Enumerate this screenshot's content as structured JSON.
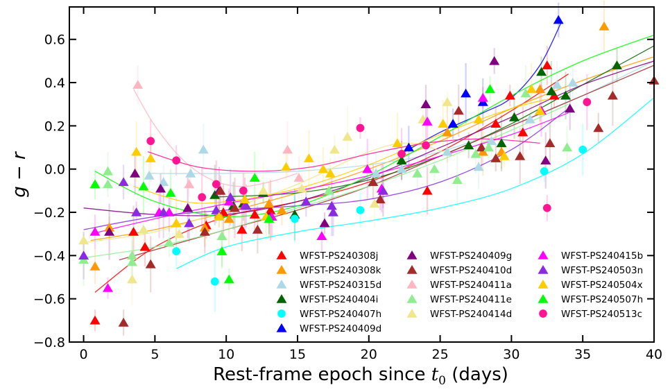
{
  "chart_data": {
    "type": "scatter",
    "xlabel_prefix": "Rest-frame epoch since ",
    "xlabel_var": "t",
    "xlabel_sub": "0",
    "xlabel_suffix": " (days)",
    "ylabel_var1": "g",
    "ylabel_op": " − ",
    "ylabel_var2": "r",
    "xlim": [
      -1,
      40
    ],
    "ylim": [
      -0.8,
      0.75
    ],
    "xticks": [
      0,
      5,
      10,
      15,
      20,
      25,
      30,
      35,
      40
    ],
    "yticks": [
      -0.8,
      -0.6,
      -0.4,
      -0.2,
      0.0,
      0.2,
      0.4,
      0.6
    ],
    "xtick_labels": [
      "0",
      "5",
      "10",
      "15",
      "20",
      "25",
      "30",
      "35",
      "40"
    ],
    "ytick_labels": [
      "−0.8",
      "−0.6",
      "−0.4",
      "−0.2",
      "0.0",
      "0.2",
      "0.4",
      "0.6"
    ],
    "legend_position": "lower-right",
    "series": [
      {
        "name": "WFST-PS240308j",
        "color": "#ff0000",
        "marker": "triangle",
        "x": [
          0.8,
          3.5,
          4.3,
          8.6,
          9.8,
          11.1,
          12.0,
          13.1,
          24.1,
          28.9,
          29.9,
          30.8,
          32.5,
          33.0
        ],
        "y": [
          -0.7,
          -0.29,
          -0.36,
          -0.26,
          -0.2,
          -0.28,
          -0.21,
          -0.19,
          -0.1,
          0.21,
          0.34,
          0.17,
          0.48,
          0.34
        ],
        "fit": [
          [
            0.8,
            -0.57
          ],
          [
            5,
            -0.36
          ],
          [
            10,
            -0.22
          ],
          [
            15,
            -0.15
          ],
          [
            20,
            -0.06
          ],
          [
            25,
            0.08
          ],
          [
            30,
            0.27
          ],
          [
            34,
            0.44
          ]
        ]
      },
      {
        "name": "WFST-PS240308k",
        "color": "#ff9900",
        "marker": "triangle",
        "x": [
          0.8,
          1.8,
          6.5,
          8.5,
          9.5,
          10.2,
          13.0,
          13.9,
          25.5,
          28.0,
          29.3,
          32.0,
          36.5
        ],
        "y": [
          -0.45,
          -0.27,
          -0.25,
          -0.27,
          -0.21,
          -0.23,
          -0.16,
          -0.19,
          0.17,
          0.08,
          0.08,
          0.37,
          0.66
        ],
        "fit": [
          [
            0.5,
            -0.33
          ],
          [
            5,
            -0.28
          ],
          [
            10,
            -0.2
          ],
          [
            15,
            -0.11
          ],
          [
            20,
            0.0
          ],
          [
            25,
            0.13
          ],
          [
            30,
            0.28
          ],
          [
            35,
            0.41
          ],
          [
            40,
            0.52
          ]
        ]
      },
      {
        "name": "WFST-PS240315d",
        "color": "#add8e6",
        "marker": "triangle",
        "x": [
          4.6,
          5.6,
          7.5,
          8.4,
          20.5,
          22.3,
          25.5,
          27.7,
          28.6,
          31.3,
          33.2,
          34.3
        ],
        "y": [
          -0.03,
          -0.06,
          -0.02,
          0.09,
          -0.02,
          0.0,
          0.08,
          0.01,
          0.13,
          0.23,
          0.39,
          0.4
        ],
        "fit": [
          [
            4.5,
            -0.02
          ],
          [
            10,
            -0.02
          ],
          [
            15,
            -0.01
          ],
          [
            20,
            0.02
          ],
          [
            25,
            0.08
          ],
          [
            30,
            0.2
          ],
          [
            35,
            0.34
          ],
          [
            40,
            0.5
          ]
        ]
      },
      {
        "name": "WFST-PS240404i",
        "color": "#006400",
        "marker": "triangle",
        "x": [
          9.2,
          10.5,
          11.2,
          12.6,
          14.8,
          22.3,
          27.0,
          29.3,
          30.2,
          32.1,
          32.8,
          33.8,
          37.4
        ],
        "y": [
          -0.12,
          -0.17,
          -0.16,
          -0.11,
          -0.21,
          0.04,
          0.11,
          0.12,
          0.24,
          0.45,
          0.36,
          0.34,
          0.48
        ],
        "fit": [
          [
            9,
            -0.13
          ],
          [
            15,
            -0.11
          ],
          [
            20,
            -0.05
          ],
          [
            25,
            0.06
          ],
          [
            30,
            0.21
          ],
          [
            35,
            0.39
          ],
          [
            40,
            0.57
          ]
        ]
      },
      {
        "name": "WFST-PS240407h",
        "color": "#00ffff",
        "marker": "circle",
        "x": [
          6.5,
          9.2,
          14.8,
          19.4,
          32.3,
          35.0
        ],
        "y": [
          -0.38,
          -0.52,
          -0.23,
          -0.19,
          -0.01,
          0.09
        ],
        "fit": [
          [
            6.5,
            -0.46
          ],
          [
            10,
            -0.36
          ],
          [
            15,
            -0.29
          ],
          [
            20,
            -0.24
          ],
          [
            25,
            -0.18
          ],
          [
            30,
            -0.09
          ],
          [
            35,
            0.07
          ],
          [
            40,
            0.33
          ]
        ]
      },
      {
        "name": "WFST-PS240409d",
        "color": "#0000ff",
        "marker": "triangle",
        "x": [
          22.8,
          25.9,
          26.8,
          28.0,
          33.3
        ],
        "y": [
          0.1,
          0.21,
          0.35,
          0.31,
          0.69
        ],
        "fit": [
          [
            22.5,
            0.08
          ],
          [
            25,
            0.17
          ],
          [
            28,
            0.26
          ],
          [
            30,
            0.33
          ],
          [
            32,
            0.48
          ],
          [
            33.5,
            0.68
          ]
        ]
      },
      {
        "name": "WFST-PS240409g",
        "color": "#800080",
        "marker": "triangle",
        "x": [
          1.8,
          3.6,
          5.4,
          7.3,
          9.5,
          13.0,
          16.9,
          21.0,
          24.0,
          28.8,
          32.4,
          34.1
        ],
        "y": [
          -0.29,
          -0.02,
          -0.09,
          -0.18,
          -0.1,
          -0.22,
          -0.25,
          -0.1,
          0.3,
          0.5,
          0.04,
          0.28
        ],
        "fit": [
          [
            0,
            -0.18
          ],
          [
            5,
            -0.21
          ],
          [
            10,
            -0.21
          ],
          [
            15,
            -0.15
          ],
          [
            20,
            -0.04
          ],
          [
            25,
            0.1
          ],
          [
            30,
            0.24
          ],
          [
            35,
            0.39
          ],
          [
            40,
            0.5
          ]
        ]
      },
      {
        "name": "WFST-PS240410d",
        "color": "#a52a2a",
        "marker": "triangle",
        "x": [
          2.8,
          4.7,
          8.5,
          9.6,
          10.6,
          12.2,
          20.3,
          20.8,
          26.3,
          27.9,
          28.9,
          30.6,
          32.7,
          36.1,
          37.1,
          40.0
        ],
        "y": [
          -0.71,
          -0.44,
          -0.29,
          -0.1,
          -0.18,
          -0.28,
          -0.06,
          -0.14,
          0.27,
          0.1,
          0.05,
          0.06,
          0.12,
          0.19,
          0.34,
          0.41
        ],
        "fit": [
          [
            2.5,
            -0.42
          ],
          [
            10,
            -0.28
          ],
          [
            15,
            -0.19
          ],
          [
            20,
            -0.08
          ],
          [
            25,
            0.06
          ],
          [
            30,
            0.2
          ],
          [
            35,
            0.34
          ],
          [
            40,
            0.48
          ]
        ]
      },
      {
        "name": "WFST-PS240411a",
        "color": "#ffb6c1",
        "marker": "triangle",
        "x": [
          3.8,
          7.4,
          14.3,
          15.1
        ],
        "y": [
          0.39,
          -0.07,
          0.09,
          -0.04
        ],
        "fit": [
          [
            3.5,
            0.37
          ],
          [
            5,
            0.2
          ],
          [
            7,
            0.04
          ],
          [
            9,
            -0.05
          ],
          [
            11,
            -0.08
          ],
          [
            13,
            -0.06
          ],
          [
            15,
            -0.02
          ]
        ]
      },
      {
        "name": "WFST-PS240411e",
        "color": "#90ee90",
        "marker": "triangle",
        "x": [
          0.0,
          1.7,
          1.7,
          3.4,
          3.4,
          6.0,
          9.7,
          17.2,
          23.4,
          24.6,
          26.2,
          27.5,
          28.4,
          31.0,
          33.9
        ],
        "y": [
          -0.42,
          -0.01,
          -0.07,
          -0.4,
          -0.43,
          -0.34,
          -0.31,
          -0.1,
          -0.02,
          0.0,
          -0.05,
          0.07,
          0.1,
          0.35,
          0.1
        ],
        "fit": [
          [
            0,
            -0.41
          ],
          [
            5,
            -0.36
          ],
          [
            10,
            -0.28
          ],
          [
            15,
            -0.18
          ],
          [
            20,
            -0.08
          ],
          [
            25,
            0.04
          ],
          [
            30,
            0.18
          ],
          [
            34,
            0.3
          ]
        ]
      },
      {
        "name": "WFST-PS240414d",
        "color": "#f0e68c",
        "marker": "triangle",
        "x": [
          0.0,
          3.4,
          4.2,
          6.7,
          12.6,
          15.3,
          17.6,
          18.5,
          20.4,
          23.8,
          25.5
        ],
        "y": [
          -0.33,
          -0.51,
          -0.28,
          -0.3,
          -0.1,
          -0.09,
          0.09,
          0.15,
          -0.16,
          0.23,
          0.31
        ],
        "fit": [
          [
            0,
            -0.34
          ],
          [
            5,
            -0.29
          ],
          [
            10,
            -0.19
          ],
          [
            15,
            -0.07
          ],
          [
            20,
            0.08
          ],
          [
            23,
            0.12
          ],
          [
            26,
            0.06
          ]
        ]
      },
      {
        "name": "WFST-PS240415b",
        "color": "#ff00ff",
        "marker": "triangle",
        "x": [
          0.8,
          1.7,
          5.3,
          6.0,
          10.2,
          11.3,
          13.2,
          16.7,
          19.9,
          20.9,
          24.1,
          28.0,
          32.1
        ],
        "y": [
          -0.29,
          -0.55,
          -0.2,
          -0.2,
          -0.15,
          -0.17,
          -0.22,
          -0.31,
          0.0,
          -0.09,
          0.22,
          0.33,
          0.27
        ],
        "fit": [
          [
            0.5,
            -0.3
          ],
          [
            5,
            -0.23
          ],
          [
            10,
            -0.16
          ],
          [
            15,
            -0.1
          ],
          [
            20,
            -0.03
          ],
          [
            25,
            0.06
          ],
          [
            30,
            0.16
          ],
          [
            34,
            0.26
          ]
        ]
      },
      {
        "name": "WFST-PS240503n",
        "color": "#8a2be2",
        "marker": "triangle",
        "x": [
          0.0,
          2.8,
          3.7,
          5.6,
          7.4,
          9.3,
          10.3,
          11.4,
          15.6,
          17.4,
          17.5,
          21.0,
          32.0
        ],
        "y": [
          -0.4,
          -0.06,
          -0.2,
          -0.2,
          -0.25,
          -0.19,
          -0.13,
          -0.17,
          -0.15,
          -0.17,
          -0.2,
          -0.1,
          0.27
        ],
        "fit": [
          [
            0,
            -0.28
          ],
          [
            5,
            -0.22
          ],
          [
            10,
            -0.19
          ],
          [
            15,
            -0.17
          ],
          [
            20,
            -0.14
          ],
          [
            25,
            -0.06
          ],
          [
            30,
            0.09
          ],
          [
            34,
            0.28
          ]
        ]
      },
      {
        "name": "WFST-PS240504x",
        "color": "#ffcc00",
        "marker": "triangle",
        "x": [
          3.7,
          4.7,
          6.5,
          9.5,
          11.3,
          12.8,
          14.2,
          15.8,
          16.8,
          17.3,
          22.0,
          25.2,
          27.7,
          29.5,
          31.4,
          32.0
        ],
        "y": [
          0.08,
          0.05,
          -0.25,
          -0.22,
          -0.14,
          -0.22,
          0.01,
          0.05,
          0.0,
          -0.02,
          0.12,
          0.21,
          0.23,
          0.06,
          0.37,
          0.27
        ],
        "fit": [
          [
            3.5,
            -0.08
          ],
          [
            7,
            -0.15
          ],
          [
            10,
            -0.15
          ],
          [
            15,
            -0.09
          ],
          [
            20,
            0.02
          ],
          [
            25,
            0.16
          ],
          [
            30,
            0.28
          ],
          [
            33,
            0.33
          ]
        ]
      },
      {
        "name": "WFST-PS240507h",
        "color": "#00ff00",
        "marker": "triangle",
        "x": [
          0.8,
          4.2,
          6.1,
          9.7,
          10.2,
          12.0,
          13.0,
          28.5
        ],
        "y": [
          -0.07,
          -0.08,
          -0.11,
          -0.38,
          -0.51,
          -0.04,
          -0.23,
          0.37
        ],
        "fit": [
          [
            0.8,
            -0.01
          ],
          [
            5,
            -0.15
          ],
          [
            10,
            -0.22
          ],
          [
            15,
            -0.17
          ],
          [
            20,
            -0.03
          ],
          [
            25,
            0.15
          ],
          [
            30,
            0.34
          ],
          [
            35,
            0.5
          ],
          [
            40,
            0.62
          ]
        ]
      },
      {
        "name": "WFST-PS240513c",
        "color": "#ff1493",
        "marker": "circle",
        "x": [
          4.7,
          6.5,
          8.3,
          9.3,
          11.2,
          19.4,
          22.3,
          24.0,
          32.5,
          35.3
        ],
        "y": [
          0.13,
          0.04,
          -0.13,
          -0.07,
          -0.1,
          0.19,
          0.07,
          0.11,
          -0.18,
          0.31
        ],
        "fit": [
          [
            4.5,
            0.08
          ],
          [
            8,
            0.01
          ],
          [
            12,
            -0.01
          ],
          [
            16,
            0.01
          ],
          [
            20,
            0.07
          ],
          [
            24,
            0.12
          ],
          [
            28,
            0.14
          ],
          [
            32,
            0.12
          ]
        ]
      }
    ]
  }
}
